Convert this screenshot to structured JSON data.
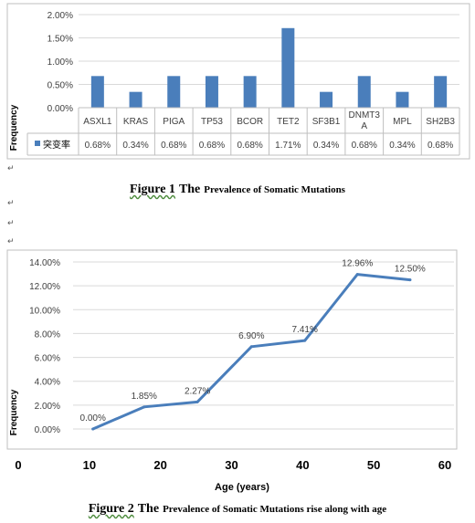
{
  "figure1": {
    "caption_figure": "Figure 1",
    "caption_the": "The",
    "caption_rest": "Prevalence of Somatic Mutations",
    "ylabel": "Frequency",
    "series_name": "突变率",
    "colors": {
      "bar": "#4a7ebb",
      "grid": "#d9d9d9",
      "axis_text": "#404040"
    }
  },
  "figure2": {
    "caption_figure": "Figure 2",
    "caption_the": "The",
    "caption_rest": "Prevalence of Somatic Mutations rise along with age",
    "ylabel": "Frequency",
    "xlabel": "Age (years)",
    "colors": {
      "line": "#4a7ebb",
      "grid": "#d9d9d9",
      "axis_text": "#404040"
    }
  },
  "chart_data": [
    {
      "type": "bar",
      "categories": [
        "ASXL1",
        "KRAS",
        "PIGA",
        "TP53",
        "BCOR",
        "TET2",
        "SF3B1",
        "DNMT3A",
        "MPL",
        "SH2B3"
      ],
      "category_display": [
        [
          "ASXL1"
        ],
        [
          "KRAS"
        ],
        [
          "PIGA"
        ],
        [
          "TP53"
        ],
        [
          "BCOR"
        ],
        [
          "TET2"
        ],
        [
          "SF3B1"
        ],
        [
          "DNMT3",
          "A"
        ],
        [
          "MPL"
        ],
        [
          "SH2B3"
        ]
      ],
      "series": [
        {
          "name": "突变率",
          "values": [
            0.68,
            0.34,
            0.68,
            0.68,
            0.68,
            1.71,
            0.34,
            0.68,
            0.34,
            0.68
          ],
          "labels": [
            "0.68%",
            "0.34%",
            "0.68%",
            "0.68%",
            "0.68%",
            "1.71%",
            "0.34%",
            "0.68%",
            "0.34%",
            "0.68%"
          ]
        }
      ],
      "ylabel": "Frequency",
      "ylim": [
        0,
        2
      ],
      "yticks": [
        "0.00%",
        "0.50%",
        "1.00%",
        "1.50%",
        "2.00%"
      ],
      "grid": true,
      "data_table": true
    },
    {
      "type": "line",
      "x": [
        10.5,
        17.7,
        25.2,
        32.8,
        40.3,
        47.7,
        55.1
      ],
      "y": [
        0.0,
        1.85,
        2.27,
        6.9,
        7.41,
        12.96,
        12.5
      ],
      "labels": [
        "0.00%",
        "1.85%",
        "2.27%",
        "6.90%",
        "7.41%",
        "12.96%",
        "12.50%"
      ],
      "xlabel": "Age (years)",
      "ylabel": "Frequency",
      "xlim": [
        0,
        60
      ],
      "ylim": [
        0,
        14
      ],
      "xticks": [
        "0",
        "10",
        "20",
        "30",
        "40",
        "50",
        "60"
      ],
      "yticks": [
        "0.00%",
        "2.00%",
        "4.00%",
        "6.00%",
        "8.00%",
        "10.00%",
        "12.00%",
        "14.00%"
      ],
      "grid": true
    }
  ]
}
